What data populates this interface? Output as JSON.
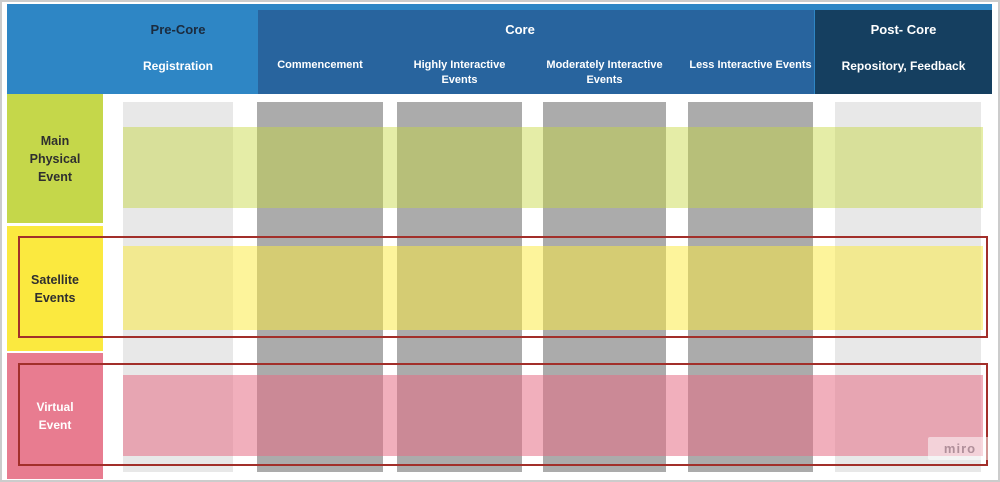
{
  "header": {
    "pre_core": {
      "title": "Pre-Core",
      "subtitle": "Registration"
    },
    "core": {
      "title": "Core",
      "columns": [
        "Commencement",
        "Highly Interactive Events",
        "Moderately Interactive Events",
        "Less Interactive Events"
      ]
    },
    "post_core": {
      "title": "Post- Core",
      "subtitle": "Repository, Feedback"
    }
  },
  "rows": [
    {
      "label": "Main Physical Event",
      "highlighted": false
    },
    {
      "label": "Satellite Events",
      "highlighted": true
    },
    {
      "label": "Virtual Event",
      "highlighted": true
    }
  ],
  "grid": {
    "phase_columns": [
      "Registration",
      "Commencement",
      "Highly Interactive Events",
      "Moderately Interactive Events",
      "Less Interactive Events",
      "Repository, Feedback"
    ],
    "row_bands_span_all_columns": true
  },
  "colors": {
    "header_light_blue": "#2e86c5",
    "header_core_blue": "#28649e",
    "header_post_navy": "#153f60",
    "row_main_green": "#c5d74a",
    "row_satellite_yellow": "#fbe93f",
    "row_virtual_pink": "#e87c90",
    "column_gray_light": "#e8e8e8",
    "column_gray_dark": "#ababab",
    "highlight_outline_red": "#a22f2a"
  },
  "watermark": "miro"
}
